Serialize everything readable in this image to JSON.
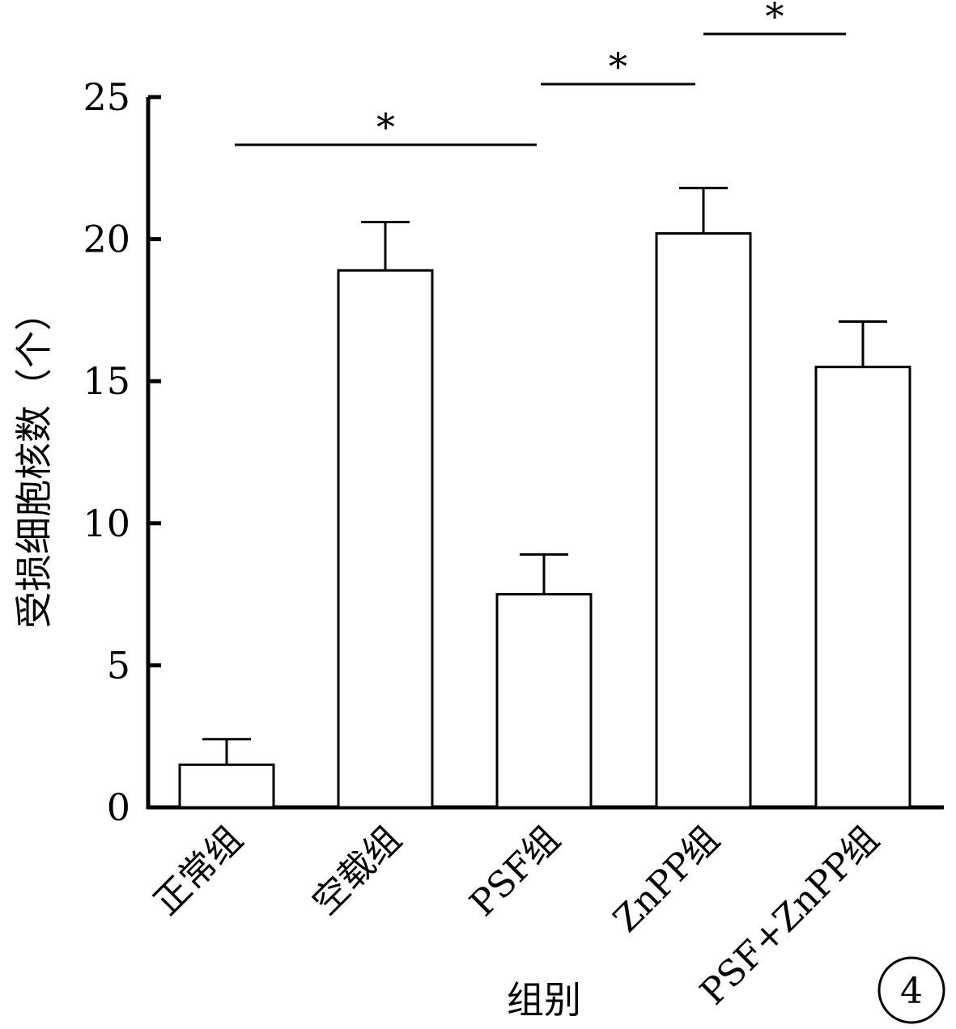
{
  "chart_data": {
    "type": "bar",
    "title": "",
    "xlabel": "组别",
    "ylabel": "受损细胞核数（个）",
    "ylim": [
      0,
      25
    ],
    "yticks": [
      0,
      5,
      10,
      15,
      20,
      25
    ],
    "categories": [
      "正常组",
      "空载组",
      "PSF组",
      "ZnPP组",
      "PSF+ZnPP组"
    ],
    "values": [
      1.5,
      18.9,
      7.5,
      20.2,
      15.5
    ],
    "errors": [
      0.9,
      1.7,
      1.4,
      1.6,
      1.6
    ],
    "grid": false,
    "bar_fill": "#ffffff",
    "bar_stroke": "#000000",
    "significance": [
      {
        "from": 0,
        "to": 2,
        "label": "*"
      },
      {
        "from": 2,
        "to": 3,
        "label": "*"
      },
      {
        "from": 3,
        "to": 4,
        "label": "*"
      }
    ]
  },
  "panel_label": "4"
}
